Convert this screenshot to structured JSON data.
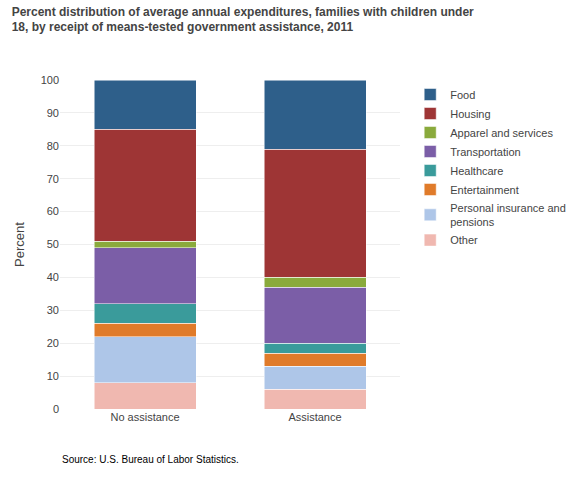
{
  "chart_data": {
    "type": "bar",
    "title": "Percent distribution of average annual expenditures, families with children under\n18, by receipt of means-tested government assistance, 2011",
    "ylabel": "Percent",
    "annotations": [
      "Source: U.S. Bureau of Labor Statistics."
    ],
    "categories": [
      "No assistance",
      "Assistance"
    ],
    "series": [
      {
        "name": "Other",
        "color": "#f0b8b0",
        "values": [
          8,
          6
        ]
      },
      {
        "name": "Personal insurance and\npensions",
        "color": "#aec6e8",
        "values": [
          14,
          7
        ]
      },
      {
        "name": "Entertainment",
        "color": "#e07b2a",
        "values": [
          4,
          4
        ]
      },
      {
        "name": "Healthcare",
        "color": "#3a9b9b",
        "values": [
          6,
          3
        ]
      },
      {
        "name": "Transportation",
        "color": "#7b5ea7",
        "values": [
          17,
          17
        ]
      },
      {
        "name": "Apparel and services",
        "color": "#8aaa3c",
        "values": [
          2,
          3
        ]
      },
      {
        "name": "Housing",
        "color": "#9e3535",
        "values": [
          34,
          39
        ]
      },
      {
        "name": "Food",
        "color": "#2e5f8a",
        "values": [
          15,
          21
        ]
      }
    ],
    "stacked": true,
    "ylim": [
      0,
      100
    ],
    "yticks": [
      0,
      10,
      20,
      30,
      40,
      50,
      60,
      70,
      80,
      90,
      100
    ],
    "grid": true,
    "legend": "right"
  }
}
